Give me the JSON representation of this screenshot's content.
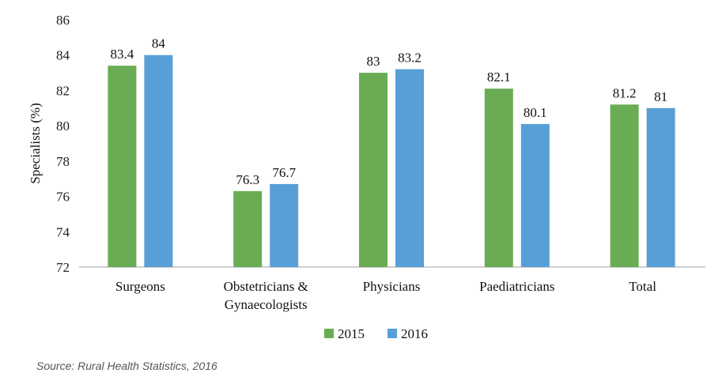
{
  "chart_data": {
    "type": "bar",
    "ylabel": "Specialists (%)",
    "xlabel": "",
    "ylim": [
      72,
      86
    ],
    "yticks": [
      72,
      74,
      76,
      78,
      80,
      82,
      84,
      86
    ],
    "categories": [
      [
        "Surgeons"
      ],
      [
        "Obstetricians &",
        "Gynaecologists"
      ],
      [
        "Physicians"
      ],
      [
        "Paediatricians"
      ],
      [
        "Total"
      ]
    ],
    "series": [
      {
        "name": "2015",
        "color": "#6aac54",
        "values": [
          83.4,
          76.3,
          83,
          82.1,
          81.2
        ]
      },
      {
        "name": "2016",
        "color": "#579fd6",
        "values": [
          84,
          76.7,
          83.2,
          80.1,
          81
        ]
      }
    ],
    "legend": "bottom-center",
    "grid": false
  },
  "source": "Source: Rural Health Statistics, 2016"
}
